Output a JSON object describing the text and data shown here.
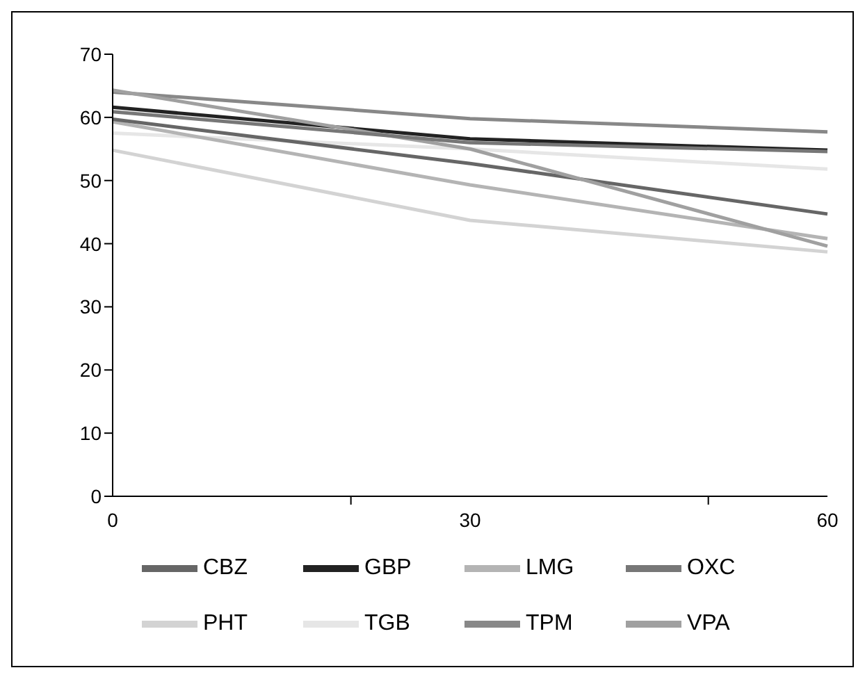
{
  "chart_data": {
    "type": "line",
    "categories": [
      "0",
      "30",
      "60"
    ],
    "series": [
      {
        "name": "GBP",
        "color": "#222222",
        "values": [
          61.6,
          56.6,
          54.8
        ]
      },
      {
        "name": "TPM",
        "color": "#888888",
        "values": [
          64.0,
          59.8,
          57.7
        ]
      },
      {
        "name": "TGB",
        "color": "#e6e6e6",
        "values": [
          57.5,
          55.0,
          51.8
        ]
      },
      {
        "name": "LMG",
        "color": "#b4b4b4",
        "values": [
          59.3,
          49.3,
          40.8
        ]
      },
      {
        "name": "CBZ",
        "color": "#666666",
        "values": [
          59.7,
          52.7,
          44.7
        ]
      },
      {
        "name": "VPA",
        "color": "#a0a0a0",
        "values": [
          64.3,
          55.0,
          39.6
        ]
      },
      {
        "name": "PHT",
        "color": "#d3d3d3",
        "values": [
          54.8,
          43.7,
          38.7
        ]
      },
      {
        "name": "OXC",
        "color": "#777777",
        "values": [
          60.9,
          56.0,
          54.6
        ]
      }
    ],
    "ylim": [
      0,
      70
    ],
    "yticks": [
      0,
      10,
      20,
      30,
      40,
      50,
      60,
      70
    ],
    "grid": false,
    "legend": "bottom",
    "marker": "none",
    "line_style": "solid"
  }
}
